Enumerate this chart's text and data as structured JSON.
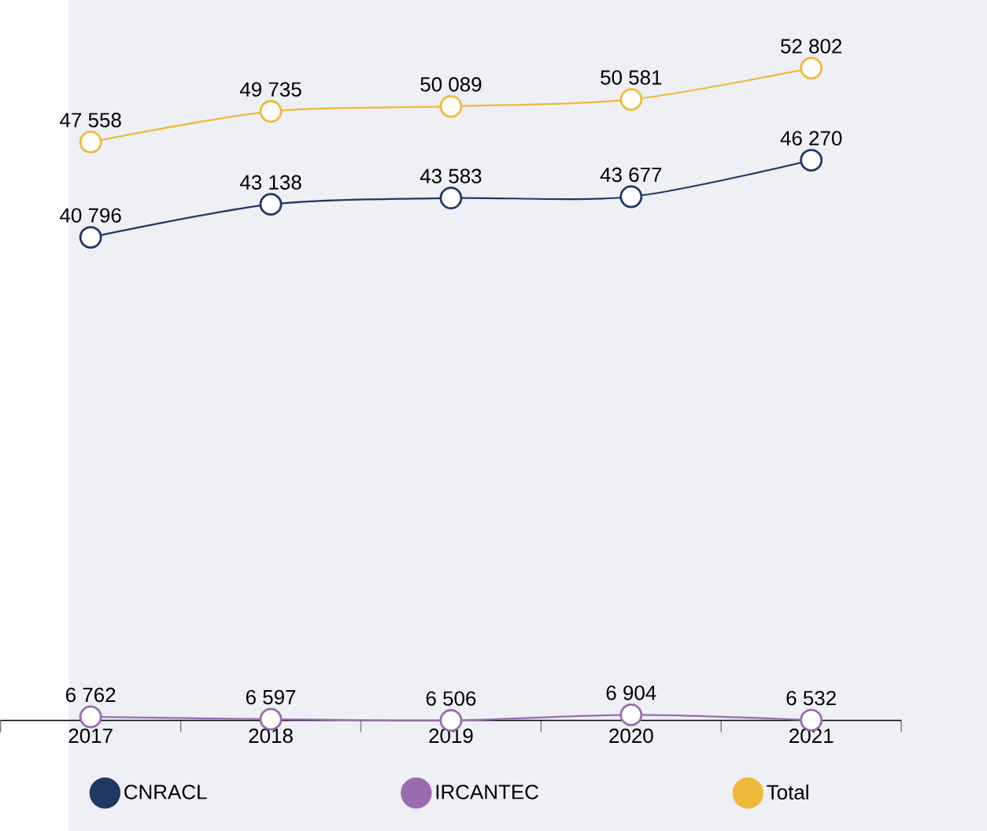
{
  "chart_data": {
    "type": "line",
    "categories": [
      "2017",
      "2018",
      "2019",
      "2020",
      "2021"
    ],
    "series": [
      {
        "name": "CNRACL",
        "color": "#1f3864",
        "values": [
          40796,
          43138,
          43583,
          43677,
          46270
        ],
        "value_labels": [
          "40 796",
          "43 138",
          "43 583",
          "43 677",
          "46 270"
        ]
      },
      {
        "name": "IRCANTEC",
        "color": "#9b6bb0",
        "values": [
          6762,
          6597,
          6506,
          6904,
          6532
        ],
        "value_labels": [
          "6 762",
          "6 597",
          "6 506",
          "6 904",
          "6 532"
        ]
      },
      {
        "name": "Total",
        "color": "#f0b93a",
        "values": [
          47558,
          49735,
          50089,
          50581,
          52802
        ],
        "value_labels": [
          "47 558",
          "49 735",
          "50 089",
          "50 581",
          "52 802"
        ]
      }
    ],
    "marker": "circle",
    "line_style": "solid",
    "legend": "bottom",
    "grid": false,
    "tick_labels": "x"
  }
}
